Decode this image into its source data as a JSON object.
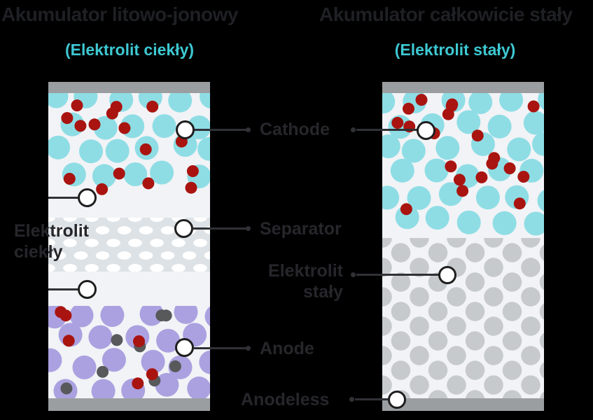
{
  "left_panel": {
    "title": "Akumulator litowo-jonowy",
    "subtitle": "(Elektrolit ciekły)",
    "side_label_line1": "Elektrolit",
    "side_label_line2": "ciekły"
  },
  "right_panel": {
    "title": "Akumulator całkowicie stały",
    "subtitle": "(Elektrolit stały)"
  },
  "labels": {
    "cathode": "Cathode",
    "separator": "Separator",
    "solid_electrolyte_line1": "Elektrolit",
    "solid_electrolyte_line2": "stały",
    "anode": "Anode",
    "anodeless": "Anodeless"
  },
  "colors": {
    "background": "#000000",
    "title_text": "#1f2024",
    "subtitle_accent": "#3ec8d2",
    "label_text": "#26262b",
    "battery_background": "#f1f3f6",
    "electrode_bar": "#9b9ea0",
    "cathode_particle": "#8edde5",
    "lithium_ion": "#a91410",
    "anode_particle": "#aba1e0",
    "additive_particle": "#58595b",
    "solid_electrolyte_particle": "#c6cacc",
    "separator_background": "#dde2e6",
    "separator_pore": "#ffffff",
    "connector_line": "#303136"
  }
}
